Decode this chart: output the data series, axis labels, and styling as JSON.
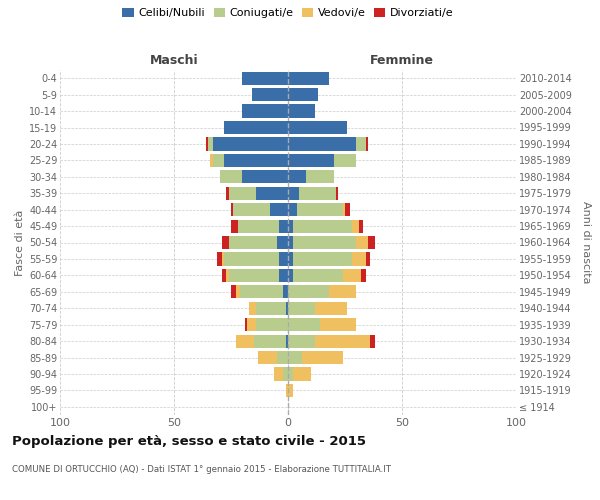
{
  "age_groups": [
    "100+",
    "95-99",
    "90-94",
    "85-89",
    "80-84",
    "75-79",
    "70-74",
    "65-69",
    "60-64",
    "55-59",
    "50-54",
    "45-49",
    "40-44",
    "35-39",
    "30-34",
    "25-29",
    "20-24",
    "15-19",
    "10-14",
    "5-9",
    "0-4"
  ],
  "birth_years": [
    "≤ 1914",
    "1915-1919",
    "1920-1924",
    "1925-1929",
    "1930-1934",
    "1935-1939",
    "1940-1944",
    "1945-1949",
    "1950-1954",
    "1955-1959",
    "1960-1964",
    "1965-1969",
    "1970-1974",
    "1975-1979",
    "1980-1984",
    "1985-1989",
    "1990-1994",
    "1995-1999",
    "2000-2004",
    "2005-2009",
    "2010-2014"
  ],
  "male_celibi": [
    0,
    0,
    0,
    0,
    1,
    0,
    1,
    2,
    4,
    4,
    5,
    4,
    8,
    14,
    20,
    28,
    33,
    28,
    20,
    16,
    20
  ],
  "male_coniugati": [
    0,
    0,
    2,
    5,
    14,
    14,
    13,
    19,
    22,
    24,
    21,
    18,
    16,
    12,
    10,
    5,
    2,
    0,
    0,
    0,
    0
  ],
  "male_vedovi": [
    0,
    1,
    4,
    8,
    8,
    4,
    3,
    2,
    1,
    1,
    0,
    0,
    0,
    0,
    0,
    1,
    0,
    0,
    0,
    0,
    0
  ],
  "male_divorziati": [
    0,
    0,
    0,
    0,
    0,
    1,
    0,
    2,
    2,
    2,
    3,
    3,
    1,
    1,
    0,
    0,
    1,
    0,
    0,
    0,
    0
  ],
  "female_celibi": [
    0,
    0,
    0,
    0,
    0,
    0,
    0,
    0,
    2,
    2,
    2,
    2,
    4,
    5,
    8,
    20,
    30,
    26,
    12,
    13,
    18
  ],
  "female_coniugati": [
    0,
    0,
    2,
    6,
    12,
    14,
    12,
    18,
    22,
    26,
    28,
    26,
    20,
    16,
    12,
    10,
    4,
    0,
    0,
    0,
    0
  ],
  "female_vedovi": [
    0,
    2,
    8,
    18,
    24,
    16,
    14,
    12,
    8,
    6,
    5,
    3,
    1,
    0,
    0,
    0,
    0,
    0,
    0,
    0,
    0
  ],
  "female_divorziati": [
    0,
    0,
    0,
    0,
    2,
    0,
    0,
    0,
    2,
    2,
    3,
    2,
    2,
    1,
    0,
    0,
    1,
    0,
    0,
    0,
    0
  ],
  "colors": {
    "celibi": "#3a6ea8",
    "coniugati": "#b8cc8e",
    "vedovi": "#f0c060",
    "divorziati": "#cc2222"
  },
  "title": "Popolazione per età, sesso e stato civile - 2015",
  "subtitle": "COMUNE DI ORTUCCHIO (AQ) - Dati ISTAT 1° gennaio 2015 - Elaborazione TUTTITALIA.IT",
  "label_maschi": "Maschi",
  "label_femmine": "Femmine",
  "ylabel_left": "Fasce di età",
  "ylabel_right": "Anni di nascita",
  "xlim": 100,
  "background_color": "#ffffff",
  "grid_color": "#cccccc",
  "legend_labels": [
    "Celibi/Nubili",
    "Coniugati/e",
    "Vedovi/e",
    "Divorziati/e"
  ]
}
